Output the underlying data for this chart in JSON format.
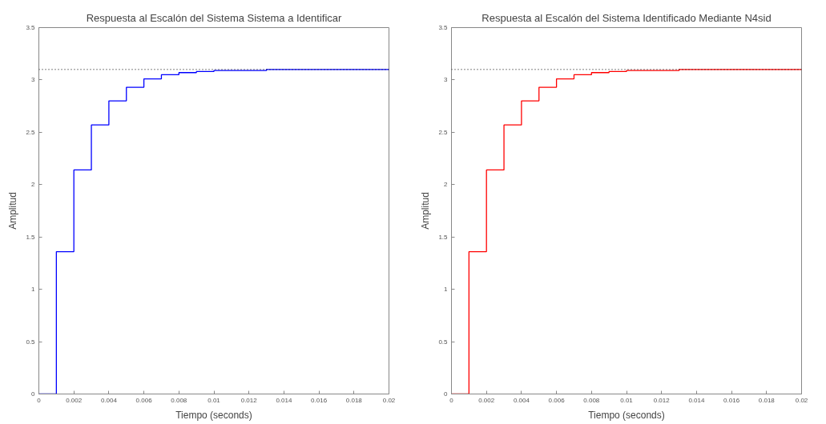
{
  "chart_data": [
    {
      "type": "step",
      "title": "Respuesta al Escalón del Sistema Sistema a Identificar",
      "xlabel": "Tiempo (seconds)",
      "ylabel": "Amplitud",
      "x": [
        0,
        0.001,
        0.002,
        0.003,
        0.004,
        0.005,
        0.006,
        0.007,
        0.008,
        0.009,
        0.01,
        0.011,
        0.012,
        0.013,
        0.02
      ],
      "series": [
        {
          "color": "#0000ff",
          "values": [
            0,
            1.36,
            2.14,
            2.57,
            2.8,
            2.93,
            3.01,
            3.05,
            3.07,
            3.08,
            3.09,
            3.09,
            3.09,
            3.1,
            3.1
          ]
        }
      ],
      "ref_lines": [
        {
          "axis": "y",
          "value": 3.1,
          "label": null,
          "color": "#000000",
          "line_style": "dotted"
        }
      ],
      "xlim": [
        0,
        0.02
      ],
      "xticks": [
        0,
        0.002,
        0.004,
        0.006,
        0.008,
        0.01,
        0.012,
        0.014,
        0.016,
        0.018,
        0.02
      ],
      "ylim": [
        0,
        3.5
      ],
      "yticks": [
        0,
        0.5,
        1,
        1.5,
        2,
        2.5,
        3,
        3.5
      ],
      "grid": false
    },
    {
      "type": "step",
      "title": "Respuesta al Escalón del Sistema Identificado Mediante N4sid",
      "xlabel": "Tiempo (seconds)",
      "ylabel": "Amplitud",
      "x": [
        0,
        0.001,
        0.002,
        0.003,
        0.004,
        0.005,
        0.006,
        0.007,
        0.008,
        0.009,
        0.01,
        0.011,
        0.012,
        0.013,
        0.02
      ],
      "series": [
        {
          "color": "#ff0000",
          "values": [
            0,
            1.36,
            2.14,
            2.57,
            2.8,
            2.93,
            3.01,
            3.05,
            3.07,
            3.08,
            3.09,
            3.09,
            3.09,
            3.1,
            3.1
          ]
        }
      ],
      "ref_lines": [
        {
          "axis": "y",
          "value": 3.1,
          "label": null,
          "color": "#000000",
          "line_style": "dotted"
        }
      ],
      "xlim": [
        0,
        0.02
      ],
      "xticks": [
        0,
        0.002,
        0.004,
        0.006,
        0.008,
        0.01,
        0.012,
        0.014,
        0.016,
        0.018,
        0.02
      ],
      "ylim": [
        0,
        3.5
      ],
      "yticks": [
        0,
        0.5,
        1,
        1.5,
        2,
        2.5,
        3,
        3.5
      ],
      "grid": false
    }
  ]
}
